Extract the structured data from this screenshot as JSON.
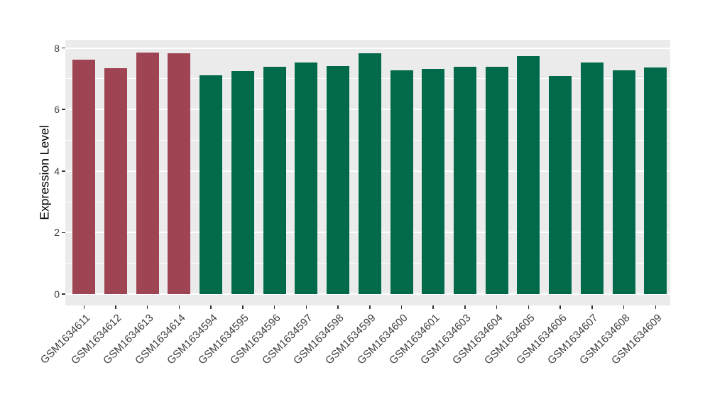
{
  "chart_data": {
    "type": "bar",
    "title": "",
    "xlabel": "",
    "ylabel": "Expression Level",
    "ylim": [
      0,
      8.3
    ],
    "yticks": [
      0,
      2,
      4,
      6,
      8
    ],
    "minor_gridlines": [
      1,
      3,
      5,
      7
    ],
    "grid": true,
    "legend_position": "none",
    "categories": [
      "GSM1634611",
      "GSM1634612",
      "GSM1634613",
      "GSM1634614",
      "GSM1634594",
      "GSM1634595",
      "GSM1634596",
      "GSM1634597",
      "GSM1634598",
      "GSM1634599",
      "GSM1634600",
      "GSM1634601",
      "GSM1634603",
      "GSM1634604",
      "GSM1634605",
      "GSM1634606",
      "GSM1634607",
      "GSM1634608",
      "GSM1634609"
    ],
    "values": [
      7.62,
      7.35,
      7.85,
      7.83,
      7.12,
      7.26,
      7.39,
      7.54,
      7.41,
      7.82,
      7.28,
      7.33,
      7.38,
      7.39,
      7.73,
      7.1,
      7.53,
      7.27,
      7.37
    ],
    "bar_colors": [
      "#9E4452",
      "#9E4452",
      "#9E4452",
      "#9E4452",
      "#006A4A",
      "#006A4A",
      "#006A4A",
      "#006A4A",
      "#006A4A",
      "#006A4A",
      "#006A4A",
      "#006A4A",
      "#006A4A",
      "#006A4A",
      "#006A4A",
      "#006A4A",
      "#006A4A",
      "#006A4A",
      "#006A4A"
    ]
  },
  "colors": {
    "group_red": "#9E4452",
    "group_green": "#006A4A",
    "panel_background": "#EBEBEB",
    "gridline": "#FFFFFF",
    "axis_text": "#3d3d3d",
    "axis_title": "#000000",
    "tick_mark": "#333333",
    "page_background": "#FFFFFF"
  }
}
